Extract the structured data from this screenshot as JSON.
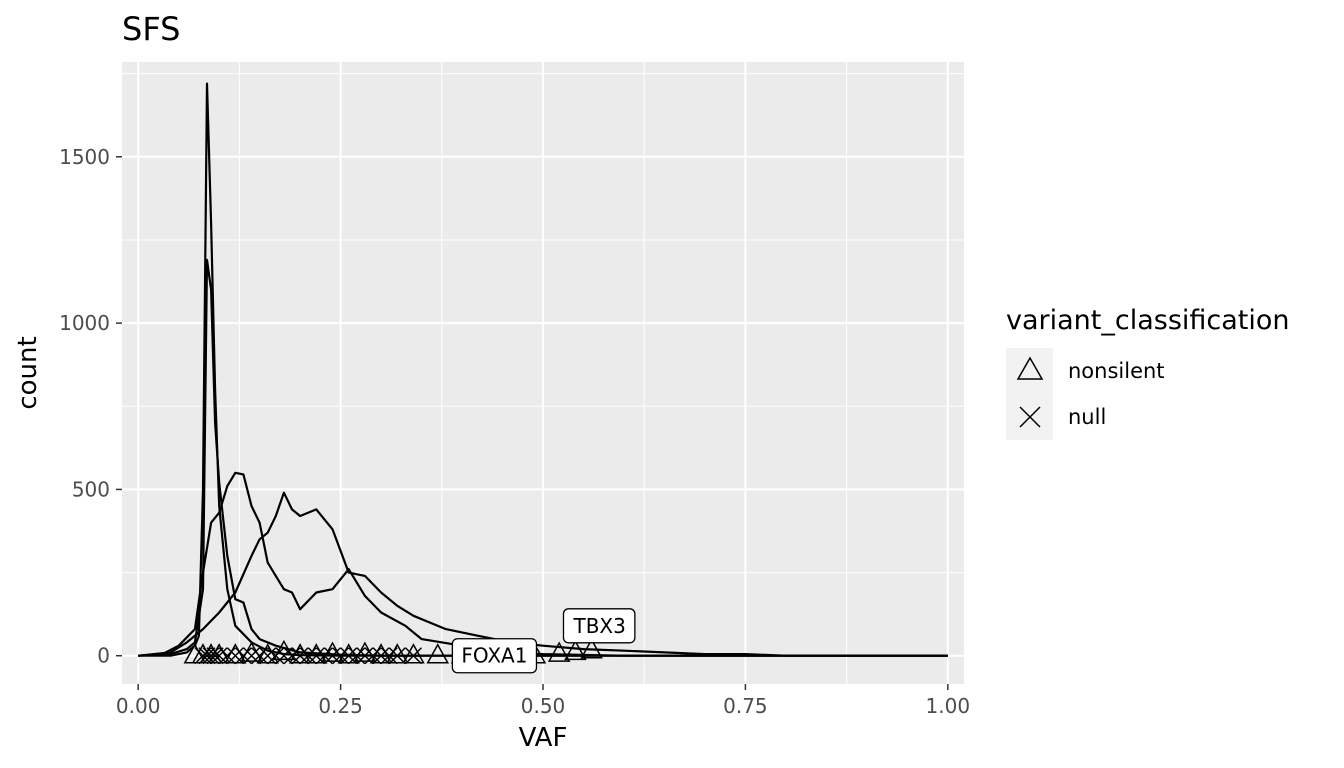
{
  "chart_data": {
    "type": "line",
    "title": "SFS",
    "xlabel": "VAF",
    "ylabel": "count",
    "xlim": [
      -0.02,
      1.02
    ],
    "ylim": [
      -85,
      1785
    ],
    "x_ticks": [
      0,
      0.25,
      0.5,
      0.75,
      1
    ],
    "x_tick_labels": [
      "0.00",
      "0.25",
      "0.50",
      "0.75",
      "1.00"
    ],
    "y_ticks": [
      0,
      500,
      1000,
      1500
    ],
    "y_tick_labels": [
      "0",
      "500",
      "1000",
      "1500"
    ],
    "grid": true,
    "legend": {
      "title": "variant_classification",
      "placement": "right",
      "entries": [
        {
          "label": "nonsilent",
          "shape": "triangle"
        },
        {
          "label": "null",
          "shape": "cross"
        }
      ]
    },
    "series": [
      {
        "x": [
          0,
          0.04,
          0.06,
          0.07,
          0.075,
          0.08,
          0.085,
          0.09,
          0.095,
          0.1,
          0.11,
          0.12,
          0.14,
          0.16,
          0.18,
          0.2,
          0.25,
          0.3,
          0.5,
          1.0
        ],
        "values": [
          0,
          0,
          10,
          30,
          60,
          500,
          1720,
          1300,
          800,
          450,
          200,
          90,
          40,
          15,
          5,
          2,
          0,
          0,
          0,
          0
        ]
      },
      {
        "x": [
          0,
          0.04,
          0.06,
          0.07,
          0.08,
          0.085,
          0.09,
          0.095,
          0.1,
          0.11,
          0.12,
          0.13,
          0.14,
          0.15,
          0.17,
          0.2,
          0.25,
          0.3,
          0.5,
          1.0
        ],
        "values": [
          0,
          5,
          20,
          40,
          200,
          1190,
          1100,
          700,
          520,
          300,
          170,
          160,
          80,
          50,
          30,
          10,
          3,
          0,
          0,
          0
        ]
      },
      {
        "x": [
          0,
          0.03,
          0.05,
          0.07,
          0.08,
          0.09,
          0.1,
          0.11,
          0.12,
          0.13,
          0.14,
          0.15,
          0.16,
          0.17,
          0.18,
          0.19,
          0.2,
          0.22,
          0.24,
          0.26,
          0.28,
          0.3,
          0.33,
          0.35,
          0.4,
          0.45,
          0.5,
          0.6,
          0.7,
          1.0
        ],
        "values": [
          0,
          5,
          30,
          80,
          250,
          400,
          430,
          510,
          550,
          545,
          450,
          400,
          280,
          240,
          200,
          190,
          140,
          190,
          200,
          260,
          180,
          130,
          90,
          50,
          30,
          10,
          5,
          0,
          0,
          0
        ]
      },
      {
        "x": [
          0,
          0.04,
          0.06,
          0.08,
          0.1,
          0.12,
          0.14,
          0.15,
          0.16,
          0.17,
          0.18,
          0.19,
          0.2,
          0.22,
          0.24,
          0.26,
          0.28,
          0.3,
          0.32,
          0.34,
          0.36,
          0.38,
          0.4,
          0.42,
          0.44,
          0.46,
          0.5,
          0.55,
          0.6,
          0.65,
          0.7,
          0.75,
          0.8,
          1.0
        ],
        "values": [
          0,
          10,
          40,
          80,
          130,
          190,
          300,
          350,
          370,
          420,
          490,
          440,
          420,
          440,
          380,
          250,
          240,
          190,
          150,
          120,
          100,
          80,
          70,
          60,
          50,
          40,
          30,
          20,
          15,
          10,
          5,
          5,
          0,
          0
        ]
      }
    ],
    "points": [
      {
        "shape": "triangle",
        "x": [
          0.07,
          0.08,
          0.09,
          0.1,
          0.12,
          0.14,
          0.16,
          0.18,
          0.2,
          0.22,
          0.24,
          0.26,
          0.28,
          0.3,
          0.32,
          0.34,
          0.37,
          0.4,
          0.43,
          0.46,
          0.49,
          0.52,
          0.54,
          0.56
        ],
        "y": [
          0,
          0,
          0,
          0,
          0,
          5,
          0,
          10,
          0,
          0,
          5,
          0,
          5,
          0,
          0,
          0,
          0,
          0,
          0,
          0,
          0,
          5,
          10,
          15
        ]
      },
      {
        "shape": "cross",
        "x": [
          0.08,
          0.085,
          0.09,
          0.095,
          0.1,
          0.11,
          0.12,
          0.13,
          0.14,
          0.15,
          0.16,
          0.17,
          0.18,
          0.19,
          0.2,
          0.21,
          0.22,
          0.23,
          0.24,
          0.25,
          0.26,
          0.27,
          0.28,
          0.29,
          0.3,
          0.31,
          0.32,
          0.34
        ],
        "y": [
          0,
          0,
          0,
          0,
          0,
          0,
          0,
          0,
          0,
          0,
          0,
          0,
          0,
          0,
          0,
          0,
          0,
          0,
          0,
          0,
          0,
          0,
          0,
          0,
          0,
          0,
          0,
          0
        ]
      }
    ],
    "annotations": [
      {
        "text": "TBX3",
        "x": 0.57,
        "y": 90
      },
      {
        "text": "FOXA1",
        "x": 0.44,
        "y": 0
      }
    ]
  }
}
